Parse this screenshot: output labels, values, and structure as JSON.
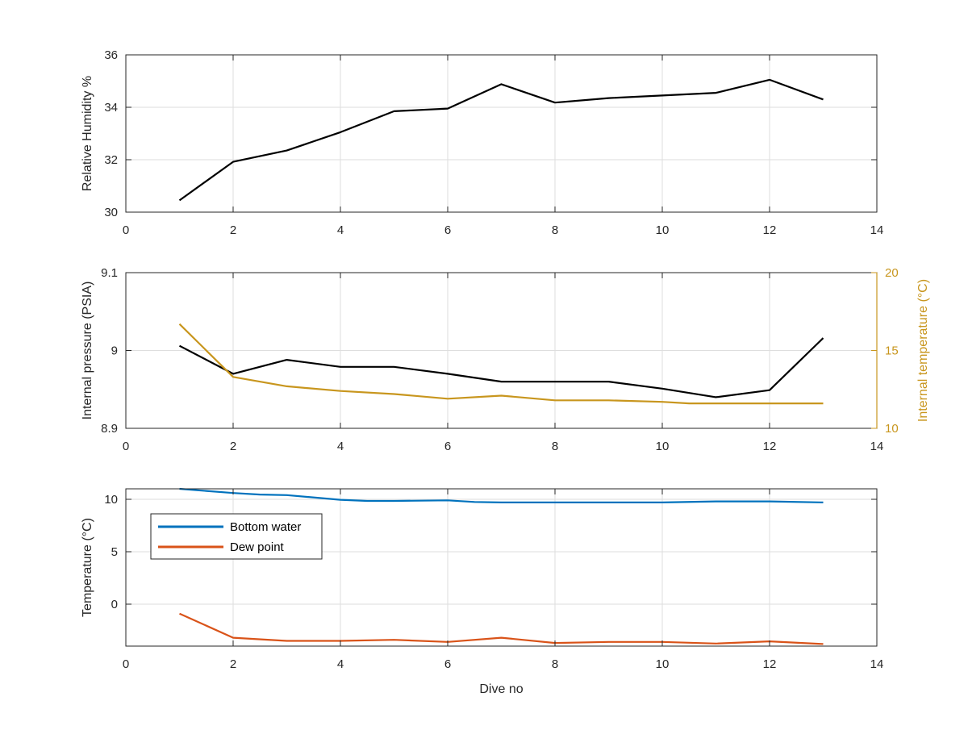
{
  "chart_data": [
    {
      "type": "line",
      "xlabel": "",
      "ylabel": "Relative Humidity %",
      "xlim": [
        0,
        14
      ],
      "ylim": [
        30,
        36
      ],
      "xticks": [
        "0",
        "2",
        "4",
        "6",
        "8",
        "10",
        "12",
        "14"
      ],
      "yticks": [
        "30",
        "32",
        "34",
        "36"
      ],
      "grid": true,
      "colors": {
        "line": "#000000"
      },
      "series": [
        {
          "x": [
            1,
            2,
            3,
            4,
            5,
            6,
            7,
            8,
            9,
            10,
            11,
            12,
            13
          ],
          "y": [
            30.45,
            31.92,
            32.35,
            33.05,
            33.85,
            33.95,
            34.88,
            34.18,
            34.35,
            34.45,
            34.55,
            35.05,
            34.3
          ]
        }
      ]
    },
    {
      "type": "line",
      "xlabel": "",
      "ylabel": "Internal pressure (PSIA)",
      "ylabel_right": "Internal temperature (°C)",
      "xlim": [
        0,
        14
      ],
      "ylim": [
        8.9,
        9.1
      ],
      "ylim_right": [
        10,
        20
      ],
      "xticks": [
        "0",
        "2",
        "4",
        "6",
        "8",
        "10",
        "12",
        "14"
      ],
      "yticks": [
        "8.9",
        "9",
        "9.1"
      ],
      "yticks_right": [
        "10",
        "15",
        "20"
      ],
      "grid": true,
      "colors": {
        "pressure": "#000000",
        "temperature": "#C8961E"
      },
      "series": [
        {
          "axis": "left",
          "x": [
            1,
            2,
            3,
            4,
            5,
            6,
            7,
            8,
            9,
            10,
            11,
            12,
            13
          ],
          "y": [
            9.006,
            8.97,
            8.988,
            8.979,
            8.979,
            8.97,
            8.96,
            8.96,
            8.96,
            8.951,
            8.94,
            8.949,
            9.016
          ]
        },
        {
          "axis": "right",
          "x": [
            1,
            2,
            3,
            4,
            5,
            6,
            7,
            8,
            9,
            10,
            10.5,
            11,
            12,
            13
          ],
          "y": [
            16.7,
            13.3,
            12.7,
            12.4,
            12.2,
            11.9,
            12.1,
            11.8,
            11.8,
            11.7,
            11.6,
            11.6,
            11.6,
            11.6
          ]
        }
      ]
    },
    {
      "type": "line",
      "xlabel": "Dive no",
      "ylabel": "Temperature (°C)",
      "xlim": [
        0,
        14
      ],
      "ylim": [
        -4,
        11
      ],
      "xticks": [
        "0",
        "2",
        "4",
        "6",
        "8",
        "10",
        "12",
        "14"
      ],
      "yticks": [
        "0",
        "5",
        "10"
      ],
      "grid": true,
      "legend": "top-left",
      "series": [
        {
          "name": "Bottom water",
          "color": "#0072BD",
          "x": [
            1,
            2,
            2.5,
            3,
            4,
            4.5,
            5,
            6,
            6.5,
            7,
            8,
            9,
            10,
            11,
            12,
            13
          ],
          "y": [
            11.3,
            10.6,
            10.45,
            10.4,
            9.95,
            9.85,
            9.85,
            9.9,
            9.75,
            9.7,
            9.7,
            9.7,
            9.7,
            9.8,
            9.8,
            9.7
          ]
        },
        {
          "name": "Dew point",
          "color": "#D95319",
          "x": [
            1,
            2,
            3,
            4,
            5,
            6,
            7,
            8,
            9,
            10,
            11,
            12,
            13
          ],
          "y": [
            -0.9,
            -3.2,
            -3.5,
            -3.5,
            -3.4,
            -3.6,
            -3.2,
            -3.7,
            -3.6,
            -3.6,
            -3.75,
            -3.55,
            -3.8
          ]
        }
      ]
    }
  ]
}
